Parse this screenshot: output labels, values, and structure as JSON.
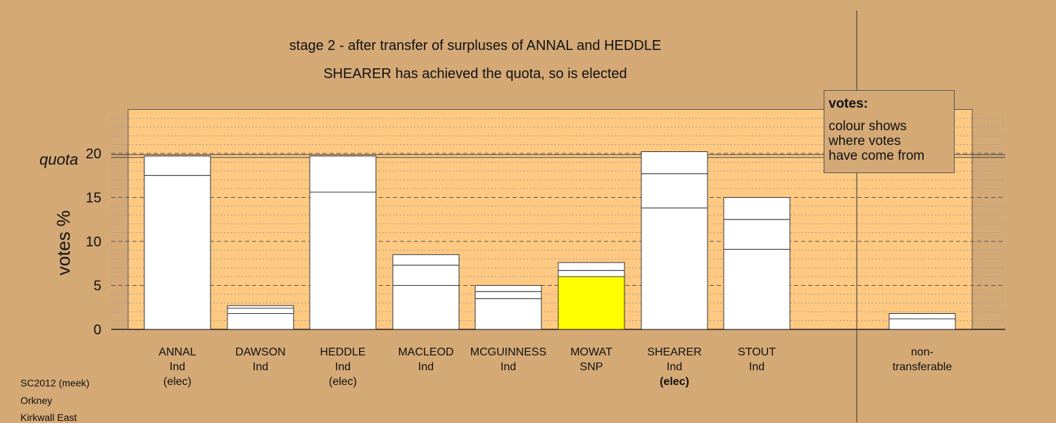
{
  "title": "stage 2 - after transfer of surpluses of ANNAL and HEDDLE",
  "subtitle": "SHEARER has achieved the quota, so is elected",
  "legend": {
    "heading": "votes:",
    "lines": [
      "colour shows",
      "where votes",
      "have come from"
    ]
  },
  "footer": [
    "SC2012 (meek)",
    "Orkney",
    "Kirkwall East"
  ],
  "candidates": [
    {
      "name": "ANNAL",
      "party": "Ind",
      "status": "(elec)",
      "status_bold": false
    },
    {
      "name": "DAWSON",
      "party": "Ind",
      "status": "",
      "status_bold": false
    },
    {
      "name": "HEDDLE",
      "party": "Ind",
      "status": "(elec)",
      "status_bold": false
    },
    {
      "name": "MACLEOD",
      "party": "Ind",
      "status": "",
      "status_bold": false
    },
    {
      "name": "MCGUINNESS",
      "party": "Ind",
      "status": "",
      "status_bold": false
    },
    {
      "name": "MOWAT",
      "party": "SNP",
      "status": "",
      "status_bold": false
    },
    {
      "name": "SHEARER",
      "party": "Ind",
      "status": "(elec)",
      "status_bold": true
    },
    {
      "name": "STOUT",
      "party": "Ind",
      "status": "",
      "status_bold": false
    }
  ],
  "nontransferable_label": [
    "non-",
    "transferable"
  ],
  "colors": {
    "background": "#d4a976",
    "plot_area": "#ffc982",
    "bar_default": "#ffffff",
    "snp": "#ffff00"
  },
  "chart_data": {
    "type": "bar",
    "stacked": true,
    "ylabel": "votes %",
    "ylim": [
      0,
      25
    ],
    "yticks": [
      0,
      5,
      10,
      15,
      20
    ],
    "quota": 19.7,
    "quota_label": "quota",
    "grid": "dashed major every 5, dotted minor every 1",
    "categories": [
      "ANNAL",
      "DAWSON",
      "HEDDLE",
      "MACLEOD",
      "MCGUINNESS",
      "MOWAT",
      "SHEARER",
      "STOUT",
      "non-transferable"
    ],
    "segments": [
      [
        {
          "value": 17.5,
          "color": "#ffffff"
        },
        {
          "value": 2.2,
          "color": "#ffffff"
        }
      ],
      [
        {
          "value": 1.8,
          "color": "#ffffff"
        },
        {
          "value": 0.6,
          "color": "#ffffff"
        },
        {
          "value": 0.3,
          "color": "#ffffff"
        }
      ],
      [
        {
          "value": 15.6,
          "color": "#ffffff"
        },
        {
          "value": 4.1,
          "color": "#ffffff"
        }
      ],
      [
        {
          "value": 5.0,
          "color": "#ffffff"
        },
        {
          "value": 2.3,
          "color": "#ffffff"
        },
        {
          "value": 1.2,
          "color": "#ffffff"
        }
      ],
      [
        {
          "value": 3.5,
          "color": "#ffffff"
        },
        {
          "value": 0.8,
          "color": "#ffffff"
        },
        {
          "value": 0.7,
          "color": "#ffffff"
        }
      ],
      [
        {
          "value": 6.0,
          "color": "#ffff00"
        },
        {
          "value": 0.7,
          "color": "#ffffff"
        },
        {
          "value": 0.9,
          "color": "#ffffff"
        }
      ],
      [
        {
          "value": 13.8,
          "color": "#ffffff"
        },
        {
          "value": 3.9,
          "color": "#ffffff"
        },
        {
          "value": 2.5,
          "color": "#ffffff"
        }
      ],
      [
        {
          "value": 9.1,
          "color": "#ffffff"
        },
        {
          "value": 3.4,
          "color": "#ffffff"
        },
        {
          "value": 2.5,
          "color": "#ffffff"
        }
      ],
      [
        {
          "value": 1.2,
          "color": "#ffffff"
        },
        {
          "value": 0.6,
          "color": "#ffffff"
        }
      ]
    ]
  }
}
